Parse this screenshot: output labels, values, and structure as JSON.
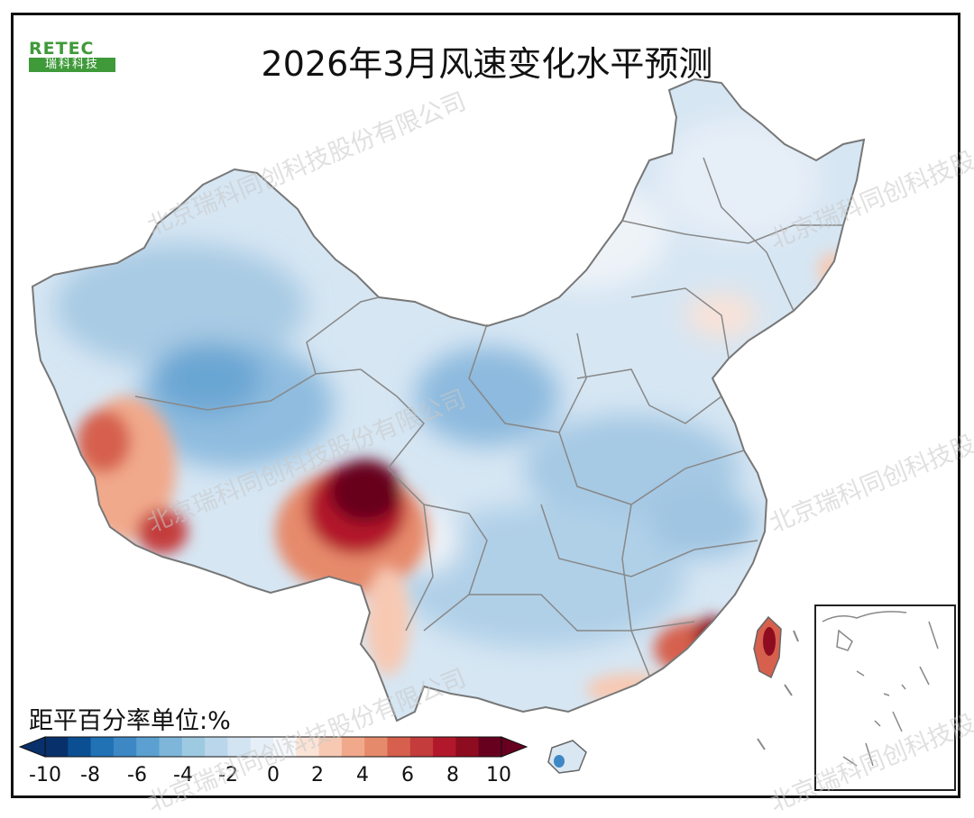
{
  "title": "2026年3月风速变化水平预测",
  "logo": {
    "top": "RETEC",
    "bottom": "瑞科科技"
  },
  "watermark": "北京瑞科同创科技股份有限公司",
  "legend": {
    "title": "距平百分率单位:%",
    "ticks": [
      "-10",
      "-8",
      "-6",
      "-4",
      "-2",
      "0",
      "2",
      "4",
      "6",
      "8",
      "10"
    ],
    "colors": [
      "#08306b",
      "#0b4f93",
      "#2171b5",
      "#3d88c4",
      "#5ba0d0",
      "#7eb6da",
      "#9ecae1",
      "#bad6ea",
      "#d2e3f1",
      "#e6eff7",
      "#f6f8fb",
      "#fbe3d7",
      "#f7c9b3",
      "#f1a98b",
      "#e68a6c",
      "#d6604d",
      "#c43c3c",
      "#b2182b",
      "#8e0c1f",
      "#67001f"
    ]
  }
}
